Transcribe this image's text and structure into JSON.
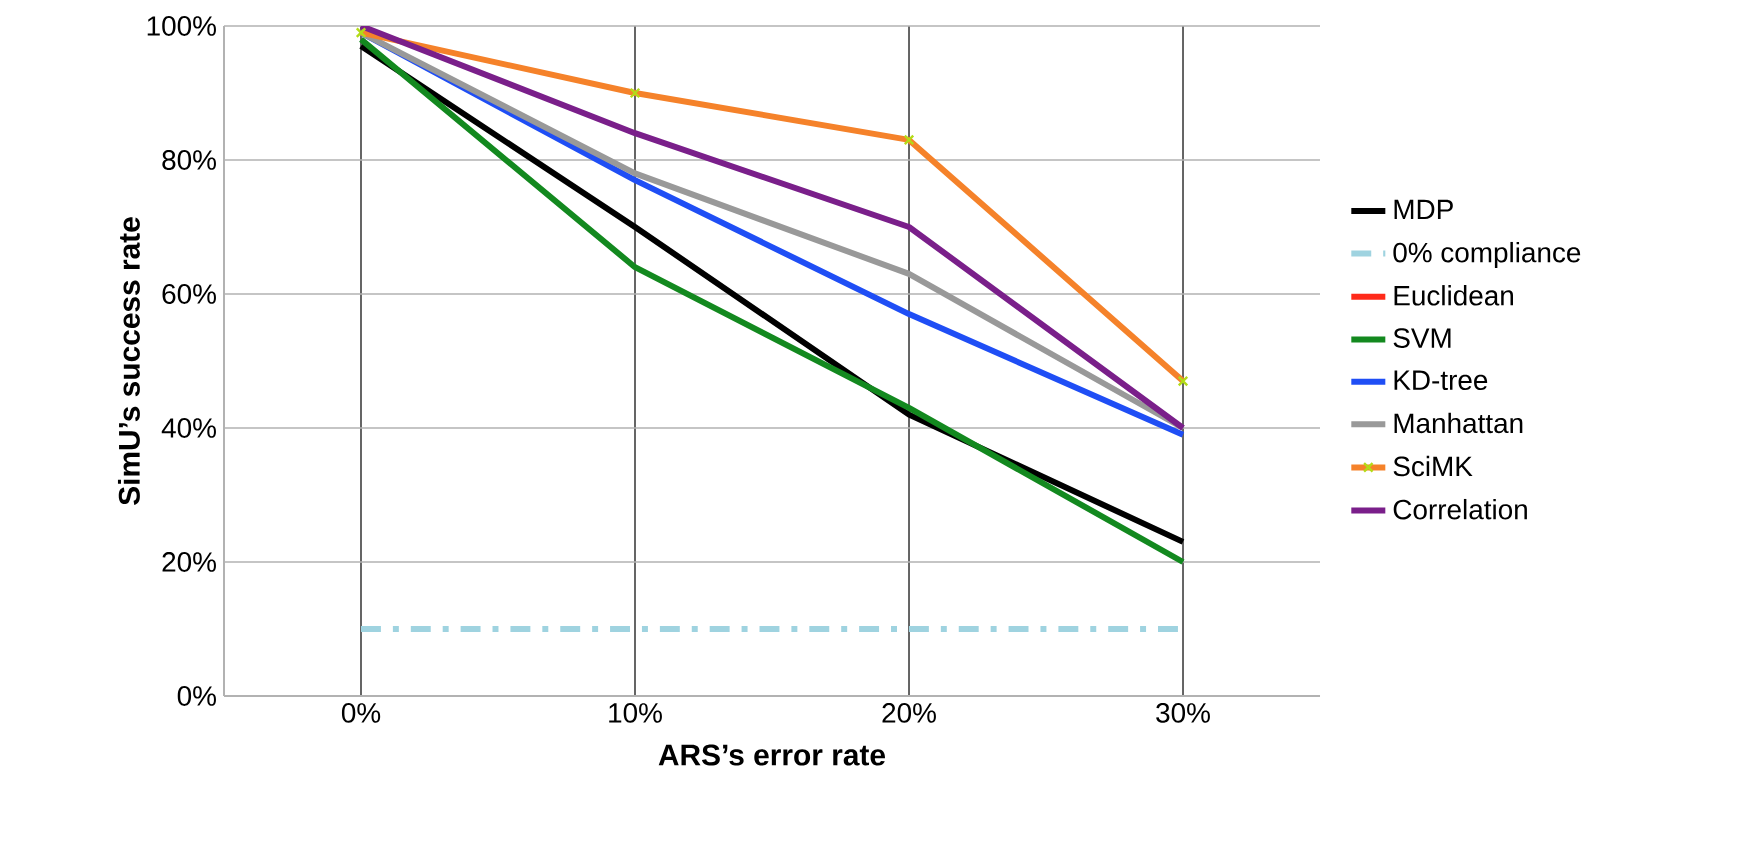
{
  "chart_data": {
    "type": "line",
    "xlabel": "ARS’s error rate",
    "ylabel": "SimU’s success rate",
    "categories": [
      "0%",
      "10%",
      "20%",
      "30%"
    ],
    "ylim": [
      0,
      100
    ],
    "yticks": [
      {
        "value": 0,
        "label": "0%"
      },
      {
        "value": 20,
        "label": "20%"
      },
      {
        "value": 40,
        "label": "40%"
      },
      {
        "value": 60,
        "label": "60%"
      },
      {
        "value": 80,
        "label": "80%"
      },
      {
        "value": 100,
        "label": "100%"
      }
    ],
    "grid": true,
    "legend": "right",
    "marker": "none",
    "line_style": "solid",
    "series": [
      {
        "name": "MDP",
        "color": "#000000",
        "values": [
          97,
          70,
          42,
          23
        ]
      },
      {
        "name": "0% compliance",
        "color": "#9fd3e0",
        "values": [
          10,
          10,
          10,
          10
        ],
        "line_style": "dashed"
      },
      {
        "name": "Euclidean",
        "color": "#ff2a1a",
        "values": [
          null,
          null,
          null,
          null
        ]
      },
      {
        "name": "SVM",
        "color": "#13891f",
        "values": [
          98,
          64,
          43,
          20
        ]
      },
      {
        "name": "KD-tree",
        "color": "#1f4ef5",
        "values": [
          99,
          77,
          57,
          39
        ]
      },
      {
        "name": "Manhattan",
        "color": "#999999",
        "values": [
          99,
          78,
          63,
          40
        ]
      },
      {
        "name": "SciMK",
        "color": "#f5822a",
        "values": [
          99,
          90,
          83,
          47
        ],
        "marker": "cross"
      },
      {
        "name": "Correlation",
        "color": "#7a1f8a",
        "values": [
          100,
          84,
          70,
          40
        ]
      }
    ]
  }
}
